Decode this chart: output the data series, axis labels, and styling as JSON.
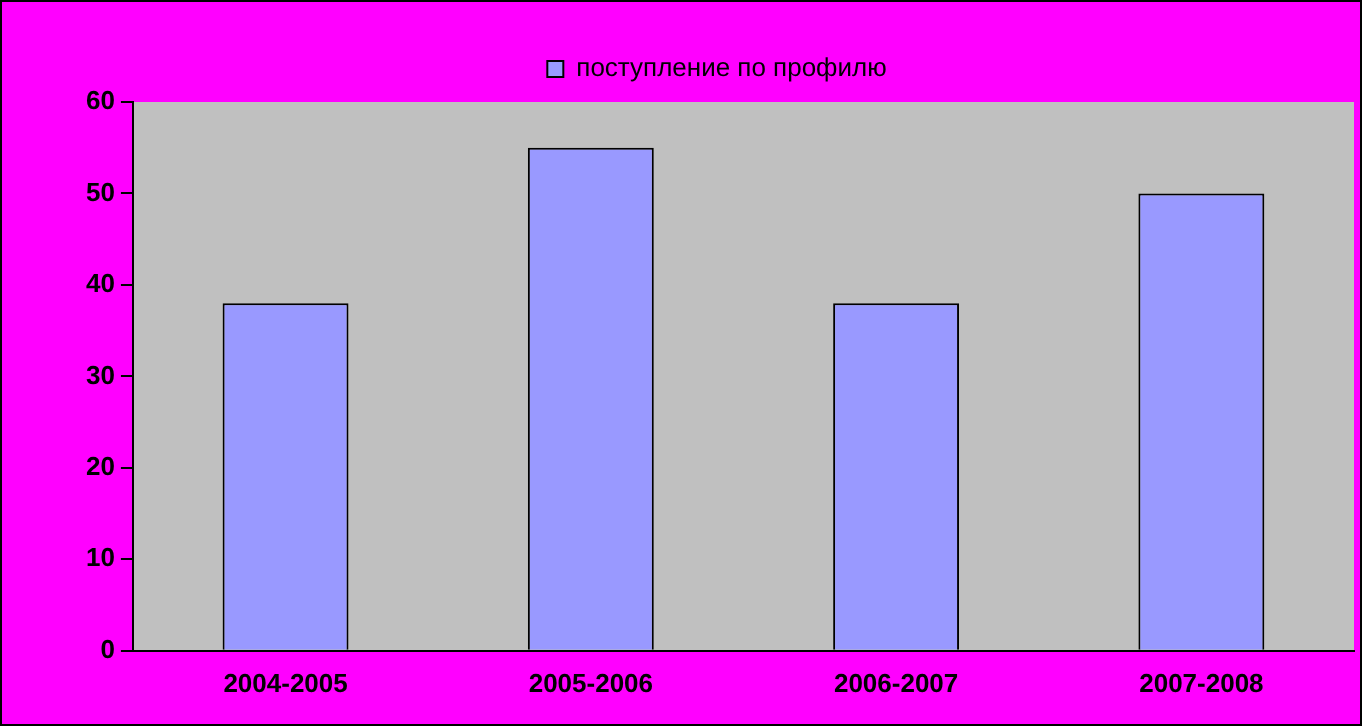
{
  "chart_data": {
    "type": "bar",
    "categories": [
      "2004-2005",
      "2005-2006",
      "2006-2007",
      "2007-2008"
    ],
    "series": [
      {
        "name": "поступление по профилю",
        "color": "#9999ff",
        "values": [
          38,
          55,
          38,
          50
        ]
      }
    ],
    "ylim": [
      0,
      60
    ],
    "yticks": [
      0,
      10,
      20,
      30,
      40,
      50,
      60
    ],
    "grid": false,
    "legend": "top"
  }
}
